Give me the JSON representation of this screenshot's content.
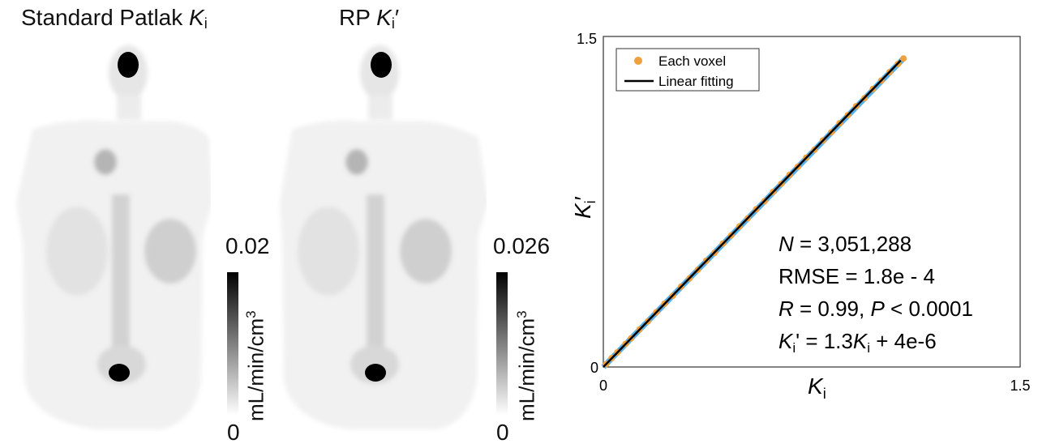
{
  "panels": {
    "left": {
      "title_prefix": "Standard Patlak ",
      "title_var": "K",
      "title_sub": "i",
      "title_suffix": "",
      "cb_max": "0.02",
      "cb_min": "0",
      "cb_unit": "mL/min/cm",
      "cb_unit_sup": "3"
    },
    "right": {
      "title_prefix": "RP ",
      "title_var": "K",
      "title_sub": "i",
      "title_suffix": "′",
      "cb_max": "0.026",
      "cb_min": "0",
      "cb_unit": "mL/min/cm",
      "cb_unit_sup": "3"
    }
  },
  "chart_data": {
    "type": "scatter",
    "xlabel_var": "K",
    "xlabel_sub": "i",
    "ylabel_var": "K",
    "ylabel_sub": "i",
    "ylabel_suffix": "′",
    "xlim": [
      0,
      1.5
    ],
    "ylim": [
      0,
      1.5
    ],
    "x_ticks": [
      "0",
      "1.5"
    ],
    "y_ticks": [
      "0",
      "1.5"
    ],
    "grid": false,
    "legend_position": "top-left",
    "legend": [
      {
        "label": "Each voxel",
        "marker": "circle",
        "color": "#f0a03c"
      },
      {
        "label": "Linear fitting",
        "marker": "line",
        "color": "#000000"
      }
    ],
    "points": [
      [
        0.01,
        0.013
      ],
      [
        0.03,
        0.04
      ],
      [
        0.05,
        0.066
      ],
      [
        0.08,
        0.105
      ],
      [
        0.1,
        0.13
      ],
      [
        0.13,
        0.17
      ],
      [
        0.16,
        0.207
      ],
      [
        0.19,
        0.248
      ],
      [
        0.22,
        0.287
      ],
      [
        0.25,
        0.323
      ],
      [
        0.28,
        0.365
      ],
      [
        0.31,
        0.402
      ],
      [
        0.34,
        0.441
      ],
      [
        0.37,
        0.482
      ],
      [
        0.4,
        0.518
      ],
      [
        0.43,
        0.56
      ],
      [
        0.46,
        0.597
      ],
      [
        0.49,
        0.638
      ],
      [
        0.52,
        0.675
      ],
      [
        0.55,
        0.716
      ],
      [
        0.58,
        0.752
      ],
      [
        0.61,
        0.794
      ],
      [
        0.64,
        0.831
      ],
      [
        0.67,
        0.872
      ],
      [
        0.7,
        0.909
      ],
      [
        0.73,
        0.95
      ],
      [
        0.76,
        0.986
      ],
      [
        0.79,
        1.028
      ],
      [
        0.82,
        1.065
      ],
      [
        0.85,
        1.106
      ],
      [
        0.88,
        1.143
      ],
      [
        0.91,
        1.184
      ],
      [
        0.94,
        1.22
      ],
      [
        0.97,
        1.262
      ],
      [
        1.0,
        1.3
      ],
      [
        1.03,
        1.338
      ],
      [
        1.06,
        1.375
      ],
      [
        1.08,
        1.4
      ]
    ],
    "fit": {
      "slope": 1.3,
      "intercept": 4e-06,
      "x_range": [
        0,
        1.07
      ]
    },
    "stats": {
      "n_var": "N",
      "n_text": " = 3,051,288",
      "rmse_text": "RMSE = 1.8e - 4",
      "r_var": "R",
      "r_text": " = 0.99, ",
      "p_var": "P",
      "p_text": " < 0.0001",
      "eq_k": "K",
      "eq_sub": "i",
      "eq_mid": "' = 1.3",
      "eq_k2": "K",
      "eq_sub2": "i",
      "eq_end": " + 4e-6"
    }
  }
}
